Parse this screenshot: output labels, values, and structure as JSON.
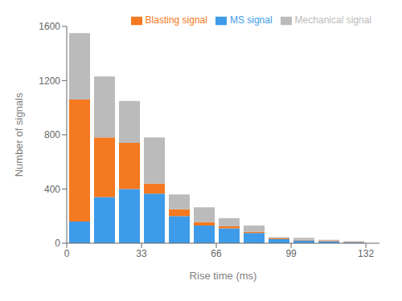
{
  "chart_data": {
    "type": "bar",
    "stacked": true,
    "x": [
      5.5,
      16.5,
      27.5,
      38.5,
      49.5,
      60.5,
      71.5,
      82.5,
      93.5,
      104.5,
      115.5,
      126.5
    ],
    "series": [
      {
        "name": "MS signal",
        "color": "#3D9BE9",
        "values": [
          160,
          340,
          400,
          365,
          200,
          130,
          110,
          75,
          30,
          20,
          15,
          8
        ]
      },
      {
        "name": "Blasting signal",
        "color": "#F47920",
        "values": [
          900,
          440,
          340,
          75,
          50,
          25,
          15,
          10,
          5,
          5,
          5,
          2
        ]
      },
      {
        "name": "Mechanical signal",
        "color": "#BBBBBB",
        "values": [
          490,
          450,
          310,
          340,
          110,
          110,
          60,
          45,
          10,
          15,
          5,
          5
        ]
      }
    ],
    "xlabel": "Rise time (ms)",
    "ylabel": "Number of signals",
    "xlim": [
      0,
      138
    ],
    "xticks": [
      0,
      33,
      66,
      99,
      132
    ],
    "ylim": [
      0,
      1600
    ],
    "yticks": [
      0,
      400,
      800,
      1200,
      1600
    ],
    "grid": false,
    "legend": "upper right"
  }
}
